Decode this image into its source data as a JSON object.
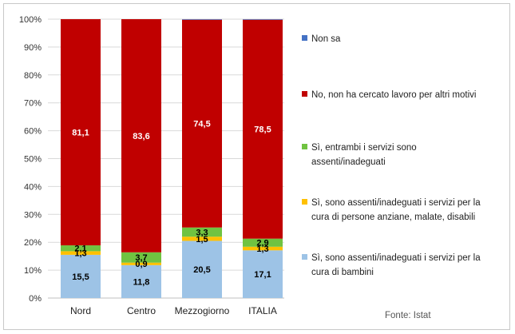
{
  "chart_data": {
    "type": "bar",
    "stacked": true,
    "percent_stacked": true,
    "categories": [
      "Nord",
      "Centro",
      "Mezzogiorno",
      "ITALIA"
    ],
    "ylim": [
      0,
      100
    ],
    "yticks": [
      "0%",
      "10%",
      "20%",
      "30%",
      "40%",
      "50%",
      "60%",
      "70%",
      "80%",
      "90%",
      "100%"
    ],
    "grid": true,
    "legend_position": "right",
    "series": [
      {
        "name": "Sì, sono assenti/inadeguati i servizi per la cura di bambini",
        "color": "#9dc3e6",
        "label_color": "#000000",
        "values": [
          15.5,
          11.8,
          20.5,
          17.1
        ],
        "labels": [
          "15,5",
          "11,8",
          "20,5",
          "17,1"
        ]
      },
      {
        "name": "Sì, sono assenti/inadeguati i servizi per la cura di persone anziane, malate, disabili",
        "color": "#ffc000",
        "label_color": "#000000",
        "values": [
          1.3,
          0.9,
          1.5,
          1.3
        ],
        "labels": [
          "1,3",
          "0,9",
          "1,5",
          "1,3"
        ]
      },
      {
        "name": "Sì, entrambi i servizi sono assenti/inadeguati",
        "color": "#70c341",
        "label_color": "#000000",
        "values": [
          2.1,
          3.7,
          3.3,
          2.9
        ],
        "labels": [
          "2,1",
          "3,7",
          "3,3",
          "2,9"
        ]
      },
      {
        "name": "No, non ha cercato lavoro per altri motivi",
        "color": "#c00000",
        "label_color": "#ffffff",
        "values": [
          81.1,
          83.6,
          74.5,
          78.5
        ],
        "labels": [
          "81,1",
          "83,6",
          "74,5",
          "78,5"
        ]
      },
      {
        "name": "Non sa",
        "color": "#4472c4",
        "label_color": "#ffffff",
        "values": [
          0.0,
          0.0,
          0.2,
          0.2
        ],
        "labels": [
          "",
          "",
          "",
          ""
        ]
      }
    ],
    "legend": [
      {
        "series_index": 4,
        "lines": [
          "Non sa"
        ]
      },
      {
        "series_index": 3,
        "lines": [
          "No, non ha cercato lavoro per altri motivi"
        ]
      },
      {
        "series_index": 2,
        "lines": [
          "Sì, entrambi i servizi sono",
          "assenti/inadeguati"
        ]
      },
      {
        "series_index": 1,
        "lines": [
          "Sì, sono assenti/inadeguati i servizi per la",
          "cura di persone anziane, malate, disabili"
        ]
      },
      {
        "series_index": 0,
        "lines": [
          "Sì, sono assenti/inadeguati i servizi per la",
          "cura di bambini"
        ]
      }
    ],
    "source": "Fonte: Istat"
  }
}
